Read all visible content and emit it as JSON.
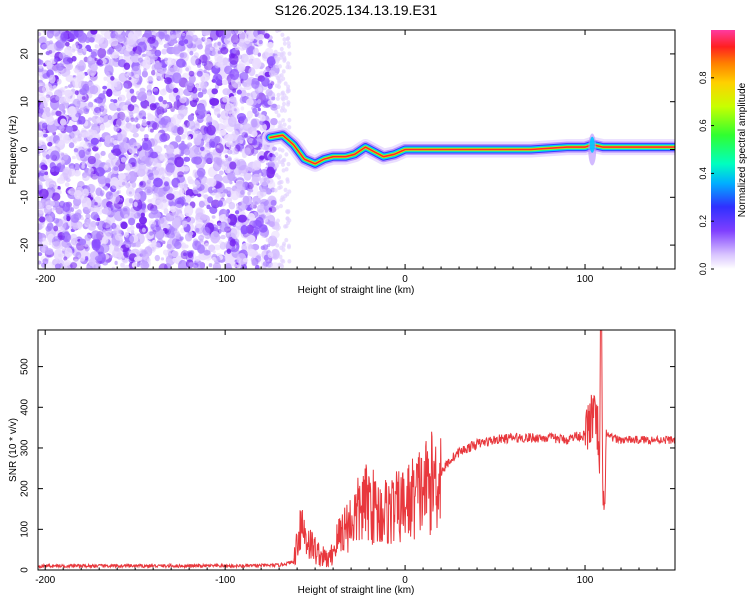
{
  "title": "S126.2025.134.13.19.E31",
  "chart_data": [
    {
      "type": "heatmap",
      "panel": "spectrogram",
      "xlabel": "Height of straight line (km)",
      "ylabel": "Frequency (Hz)",
      "xlim": [
        -204,
        150
      ],
      "ylim": [
        -25,
        25
      ],
      "xticks": [
        -200,
        -100,
        0,
        100
      ],
      "yticks": [
        -20,
        -10,
        0,
        10,
        20
      ],
      "colorbar": {
        "label": "Normalized spectral amplitude",
        "range": [
          0,
          1
        ],
        "ticks": [
          0.0,
          0.2,
          0.4,
          0.6,
          0.8
        ],
        "tick_labels": [
          "0.0",
          "0.2",
          "0.4",
          "0.6",
          "0.8"
        ]
      },
      "ridge": [
        {
          "x": -75,
          "y": 2.5
        },
        {
          "x": -68,
          "y": 3
        },
        {
          "x": -62,
          "y": 1
        },
        {
          "x": -56,
          "y": -2
        },
        {
          "x": -50,
          "y": -3
        },
        {
          "x": -45,
          "y": -2
        },
        {
          "x": -40,
          "y": -1.5
        },
        {
          "x": -33,
          "y": -1.5
        },
        {
          "x": -28,
          "y": -1
        },
        {
          "x": -22,
          "y": 0.5
        },
        {
          "x": -17,
          "y": -0.5
        },
        {
          "x": -12,
          "y": -1.5
        },
        {
          "x": -6,
          "y": -1
        },
        {
          "x": 0,
          "y": 0
        },
        {
          "x": 10,
          "y": 0
        },
        {
          "x": 30,
          "y": 0
        },
        {
          "x": 50,
          "y": 0
        },
        {
          "x": 70,
          "y": 0
        },
        {
          "x": 90,
          "y": 0.5
        },
        {
          "x": 100,
          "y": 0.5
        },
        {
          "x": 104,
          "y": 1
        },
        {
          "x": 110,
          "y": 0.5
        },
        {
          "x": 130,
          "y": 0.5
        },
        {
          "x": 150,
          "y": 0.5
        }
      ]
    },
    {
      "type": "line",
      "panel": "snr",
      "xlabel": "Height of straight line (km)",
      "ylabel": "SNR (10 * v/v)",
      "xlim": [
        -204,
        150
      ],
      "ylim": [
        0,
        590
      ],
      "xticks": [
        -200,
        -100,
        0,
        100
      ],
      "yticks": [
        0,
        100,
        200,
        300,
        400,
        500
      ],
      "color": "#e8383d",
      "series": [
        {
          "x": [
            -204,
            -180,
            -150,
            -120,
            -90,
            -70,
            -62,
            -58,
            -55,
            -52,
            -48,
            -45,
            -42,
            -38,
            -35,
            -32,
            -28,
            -25,
            -20,
            -15,
            -10,
            -5,
            0,
            5,
            10,
            15,
            20,
            25,
            30,
            40,
            50,
            60,
            70,
            80,
            90,
            95,
            100,
            104,
            107,
            108,
            109,
            110,
            112,
            115,
            120,
            130,
            140,
            150
          ],
          "y": [
            10,
            10,
            10,
            10,
            10,
            12,
            20,
            120,
            80,
            60,
            40,
            30,
            25,
            70,
            100,
            110,
            130,
            150,
            170,
            140,
            145,
            150,
            160,
            180,
            200,
            215,
            240,
            270,
            290,
            310,
            320,
            325,
            325,
            325,
            320,
            330,
            330,
            380,
            350,
            200,
            590,
            100,
            330,
            325,
            320,
            320,
            320,
            320
          ]
        }
      ]
    }
  ]
}
